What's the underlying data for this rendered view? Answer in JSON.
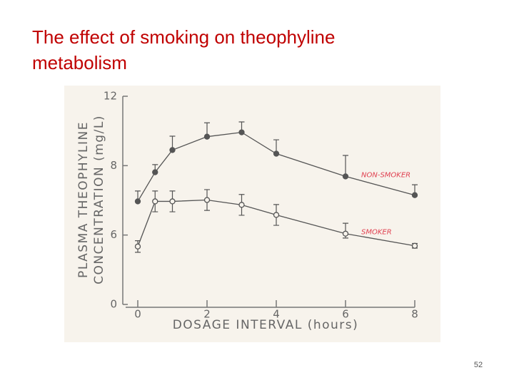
{
  "chart_data": {
    "type": "line",
    "title_lines": [
      "The effect of smoking on theophyline",
      "metabolism"
    ],
    "xlabel": "DOSAGE INTERVAL (hours)",
    "ylabel_lines": [
      "PLASMA THEOPHYLINE",
      "CONCENTRATION (mg/L)"
    ],
    "x": [
      0,
      0.5,
      1,
      2,
      3,
      4,
      6,
      8
    ],
    "series": [
      {
        "name": "NON-SMOKER",
        "color": "#555555",
        "marker": "filled",
        "values": [
          6.97,
          7.81,
          8.9,
          9.67,
          9.92,
          8.69,
          7.69,
          7.15
        ],
        "errors": [
          0.3,
          0.25,
          0.8,
          0.8,
          0.6,
          0.8,
          0.9,
          0.3
        ]
      },
      {
        "name": "SMOKER",
        "color": "#555555",
        "marker": "open",
        "values": [
          5.01,
          6.97,
          6.97,
          7.01,
          6.87,
          6.58,
          6.04,
          5.07
        ],
        "errors": [
          0.5,
          0.3,
          0.3,
          0.3,
          0.3,
          0.3,
          0.3,
          0.2
        ]
      }
    ],
    "xlim": [
      -0.4,
      8
    ],
    "xticks": [
      0,
      2,
      4,
      6,
      8
    ],
    "ylim": [
      0,
      12
    ],
    "yticks": [
      0,
      6,
      8,
      12
    ]
  },
  "page_number": "52"
}
